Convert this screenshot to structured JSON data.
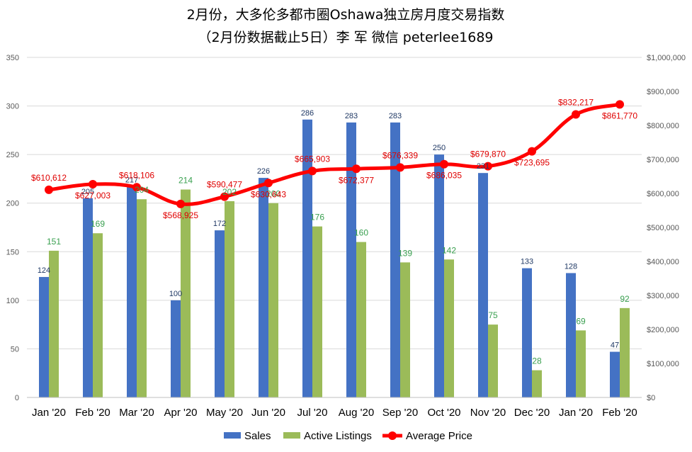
{
  "chart_data": {
    "type": "bar",
    "title": "2月份，大多伦多都市圈Oshawa独立房月度交易指数",
    "subtitle": "（2月份数据截止5日）李 军  微信  peterlee1689",
    "categories": [
      "Jan '20",
      "Feb '20",
      "Mar '20",
      "Apr '20",
      "May '20",
      "Jun '20",
      "Jul '20",
      "Aug '20",
      "Sep '20",
      "Oct '20",
      "Nov '20",
      "Dec '20",
      "Jan '20",
      "Feb '20"
    ],
    "series": [
      {
        "name": "Sales",
        "type": "bar",
        "axis": "left",
        "color": "#4472c4",
        "values": [
          124,
          205,
          217,
          100,
          172,
          226,
          286,
          283,
          283,
          250,
          231,
          133,
          128,
          47
        ],
        "labels": [
          "124",
          "205",
          "217",
          "100",
          "172",
          "226",
          "286",
          "283",
          "283",
          "250",
          "231",
          "133",
          "128",
          "47"
        ]
      },
      {
        "name": "Active Listings",
        "type": "bar",
        "axis": "left",
        "color": "#9bbb59",
        "values": [
          151,
          169,
          204,
          214,
          202,
          200,
          176,
          160,
          139,
          142,
          75,
          28,
          69,
          92
        ],
        "labels": [
          "151",
          "169",
          "204",
          "214",
          "202",
          "200",
          "176",
          "160",
          "139",
          "142",
          "75",
          "28",
          "69",
          "92"
        ]
      },
      {
        "name": "Average Price",
        "type": "line",
        "axis": "right",
        "color": "#ff0000",
        "values": [
          610612,
          627003,
          618106,
          568925,
          590477,
          630643,
          665903,
          672377,
          676339,
          686035,
          679870,
          723695,
          832217,
          861770
        ],
        "labels": [
          "$610,612",
          "$627,003",
          "$618,106",
          "$568,925",
          "$590,477",
          "$630,643",
          "$665,903",
          "$672,377",
          "$676,339",
          "$686,035",
          "$679,870",
          "$723,695",
          "$832,217",
          "$861,770"
        ]
      }
    ],
    "y_left": {
      "min": 0,
      "max": 350,
      "step": 50,
      "ticks": [
        "0",
        "50",
        "100",
        "150",
        "200",
        "250",
        "300",
        "350"
      ]
    },
    "y_right": {
      "min": 0,
      "max": 1000000,
      "step": 100000,
      "ticks": [
        "$0",
        "$100,000",
        "$200,000",
        "$300,000",
        "$400,000",
        "$500,000",
        "$600,000",
        "$700,000",
        "$800,000",
        "$900,000",
        "$1,000,000"
      ]
    },
    "grid": true,
    "legend": {
      "position": "bottom",
      "items": [
        "Sales",
        "Active Listings",
        "Average Price"
      ]
    }
  }
}
